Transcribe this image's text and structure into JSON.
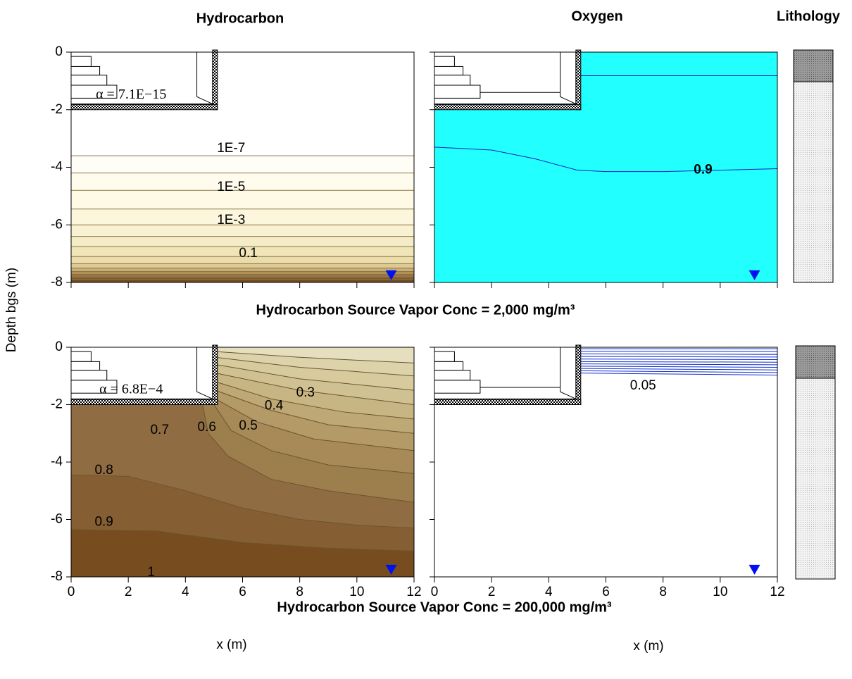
{
  "titles": [
    "Hydrocarbon",
    "Oxygen",
    "Lithology"
  ],
  "ylabel": "Depth bgs (m)",
  "subtitles": [
    "Hydrocarbon Source Vapor Conc = 2,000 mg/m³",
    "Hydrocarbon Source Vapor Conc = 200,000 mg/m³"
  ],
  "xlabels": [
    "x (m)",
    "x (m)"
  ],
  "chart_data": [
    {
      "type": "contour",
      "annotation": "α = 7.1E−15",
      "xlim": [
        0,
        12
      ],
      "ylim": [
        -8,
        0
      ],
      "xticks": [
        0,
        2,
        4,
        6,
        8,
        10,
        12
      ],
      "yticks": [
        0,
        -2,
        -4,
        -6,
        -8
      ],
      "xtick_labels": false,
      "ytick_labels": true,
      "background": "#ffffff",
      "line_color": "#8a7446",
      "contours": [
        {
          "x": [
            0,
            12
          ],
          "y": [
            -3.6,
            -3.6
          ],
          "fill": "#fffef6"
        },
        {
          "x": [
            0,
            12
          ],
          "y": [
            -4.2,
            -4.2
          ],
          "fill": "#fffcee"
        },
        {
          "x": [
            0,
            12
          ],
          "y": [
            -4.8,
            -4.8
          ],
          "fill": "#fffae6"
        },
        {
          "x": [
            0,
            12
          ],
          "y": [
            -5.45,
            -5.45
          ],
          "fill": "#fbf6dc"
        },
        {
          "x": [
            0,
            12
          ],
          "y": [
            -6.0,
            -6.0
          ],
          "fill": "#f8f1d2"
        },
        {
          "x": [
            0,
            12
          ],
          "y": [
            -6.4,
            -6.4
          ],
          "fill": "#f4ecc6"
        },
        {
          "x": [
            0,
            12
          ],
          "y": [
            -6.75,
            -6.75
          ],
          "fill": "#f0e5b8"
        },
        {
          "x": [
            0,
            12
          ],
          "y": [
            -7.1,
            -7.1
          ],
          "fill": "#eadcab"
        },
        {
          "x": [
            0,
            12
          ],
          "y": [
            -7.35,
            -7.35
          ],
          "fill": "#ddc993"
        },
        {
          "x": [
            0,
            12
          ],
          "y": [
            -7.5,
            -7.5
          ],
          "fill": "#c9ae77"
        },
        {
          "x": [
            0,
            12
          ],
          "y": [
            -7.62,
            -7.62
          ],
          "fill": "#b08f58"
        },
        {
          "x": [
            0,
            12
          ],
          "y": [
            -7.72,
            -7.72
          ],
          "fill": "#987440"
        },
        {
          "x": [
            0,
            12
          ],
          "y": [
            -7.82,
            -7.82
          ],
          "fill": "#7f5a2c"
        },
        {
          "x": [
            0,
            12
          ],
          "y": [
            -7.9,
            -7.9
          ],
          "fill": "#6e4a20"
        }
      ],
      "labels": [
        {
          "text": "1E-7",
          "x": 5.6,
          "y": -3.35
        },
        {
          "text": "1E-5",
          "x": 5.6,
          "y": -4.7
        },
        {
          "text": "1E-3",
          "x": 5.6,
          "y": -5.85
        },
        {
          "text": "0.1",
          "x": 6.2,
          "y": -7.0
        }
      ]
    },
    {
      "type": "contour",
      "xlim": [
        0,
        12
      ],
      "ylim": [
        -8,
        0
      ],
      "xticks": [
        0,
        2,
        4,
        6,
        8,
        10,
        12
      ],
      "yticks": [
        0,
        -2,
        -4,
        -6,
        -8
      ],
      "xtick_labels": false,
      "ytick_labels": false,
      "background": "#22ffff",
      "line_color": "#1020c0",
      "contours": [
        {
          "x": [
            5.05,
            12
          ],
          "y": [
            -0.82,
            -0.82
          ]
        },
        {
          "x": [
            0,
            2,
            3.5,
            5,
            6,
            8,
            10,
            12
          ],
          "y": [
            -3.3,
            -3.4,
            -3.7,
            -4.1,
            -4.15,
            -4.15,
            -4.1,
            -4.05
          ]
        }
      ],
      "labels": [
        {
          "text": "0.9",
          "x": 9.4,
          "y": -4.1,
          "bold": true
        }
      ]
    },
    {
      "type": "contour",
      "annotation": "α = 6.8E−4",
      "xlim": [
        0,
        12
      ],
      "ylim": [
        -8,
        0
      ],
      "xticks": [
        0,
        2,
        4,
        6,
        8,
        10,
        12
      ],
      "yticks": [
        0,
        -2,
        -4,
        -6,
        -8
      ],
      "xtick_labels": true,
      "ytick_labels": true,
      "background": "#e6dfbf",
      "line_color": "#6b5530",
      "contours": [
        {
          "x": [
            5.05,
            8,
            12
          ],
          "y": [
            -0.15,
            -0.35,
            -0.55
          ],
          "fill": "#ddd3aa"
        },
        {
          "x": [
            5.05,
            8,
            12
          ],
          "y": [
            -0.35,
            -0.7,
            -1.0
          ],
          "fill": "#d7cb9d"
        },
        {
          "x": [
            5.05,
            8,
            12
          ],
          "y": [
            -0.6,
            -1.1,
            -1.5
          ],
          "fill": "#d0c192"
        },
        {
          "x": [
            5.05,
            8,
            12
          ],
          "y": [
            -0.9,
            -1.5,
            -2.0
          ],
          "fill": "#c8b584"
        },
        {
          "x": [
            5.05,
            7,
            9.5,
            12
          ],
          "y": [
            -1.2,
            -1.8,
            -2.25,
            -2.5
          ],
          "fill": "#bea875"
        },
        {
          "x": [
            5.05,
            7,
            9,
            12
          ],
          "y": [
            -1.5,
            -2.2,
            -2.7,
            -3.0
          ],
          "fill": "#b39a66"
        },
        {
          "x": [
            5.05,
            6.5,
            8.5,
            12
          ],
          "y": [
            -1.8,
            -2.6,
            -3.2,
            -3.6
          ],
          "fill": "#a78a58"
        },
        {
          "x": [
            5.0,
            5.6,
            7,
            9,
            12
          ],
          "y": [
            -2.0,
            -2.9,
            -3.6,
            -4.1,
            -4.4
          ],
          "fill": "#9d7f4d"
        },
        {
          "x": [
            4.6,
            4.8,
            5.5,
            7,
            9,
            12
          ],
          "y": [
            -2.0,
            -3.0,
            -3.8,
            -4.6,
            -5.0,
            -5.4
          ],
          "fill": "#8f6c42"
        },
        {
          "x": [
            0,
            2,
            4,
            6,
            8,
            10,
            12
          ],
          "y": [
            -4.45,
            -4.5,
            -5.0,
            -5.6,
            -6.0,
            -6.2,
            -6.3
          ],
          "fill": "#855f33"
        },
        {
          "x": [
            0,
            3,
            6,
            9,
            12
          ],
          "y": [
            -6.35,
            -6.4,
            -6.8,
            -7.0,
            -7.1
          ],
          "fill": "#774d20"
        }
      ],
      "labels": [
        {
          "text": "0.3",
          "x": 8.2,
          "y": -1.6
        },
        {
          "text": "0.4",
          "x": 7.1,
          "y": -2.05
        },
        {
          "text": "0.5",
          "x": 6.2,
          "y": -2.75
        },
        {
          "text": "0.6",
          "x": 4.75,
          "y": -2.8
        },
        {
          "text": "0.7",
          "x": 3.1,
          "y": -2.9
        },
        {
          "text": "0.8",
          "x": 1.15,
          "y": -4.3
        },
        {
          "text": "0.9",
          "x": 1.15,
          "y": -6.1
        },
        {
          "text": "1",
          "x": 2.8,
          "y": -7.85
        }
      ]
    },
    {
      "type": "contour",
      "xlim": [
        0,
        12
      ],
      "ylim": [
        -8,
        0
      ],
      "xticks": [
        0,
        2,
        4,
        6,
        8,
        10,
        12
      ],
      "yticks": [
        0,
        -2,
        -4,
        -6,
        -8
      ],
      "xtick_labels": true,
      "ytick_labels": false,
      "background": "#ffffff",
      "line_color": "#1030d0",
      "contours": [
        {
          "x": [
            5.05,
            12
          ],
          "y": [
            -0.05,
            -0.05
          ]
        },
        {
          "x": [
            5.05,
            12
          ],
          "y": [
            -0.14,
            -0.15
          ]
        },
        {
          "x": [
            5.05,
            12
          ],
          "y": [
            -0.23,
            -0.25
          ]
        },
        {
          "x": [
            5.05,
            12
          ],
          "y": [
            -0.32,
            -0.34
          ]
        },
        {
          "x": [
            5.05,
            12
          ],
          "y": [
            -0.41,
            -0.43
          ]
        },
        {
          "x": [
            5.05,
            12
          ],
          "y": [
            -0.5,
            -0.52
          ]
        },
        {
          "x": [
            5.05,
            12
          ],
          "y": [
            -0.58,
            -0.61
          ]
        },
        {
          "x": [
            5.05,
            12
          ],
          "y": [
            -0.66,
            -0.7
          ]
        },
        {
          "x": [
            5.05,
            12
          ],
          "y": [
            -0.74,
            -0.79
          ]
        },
        {
          "x": [
            5.05,
            12
          ],
          "y": [
            -0.82,
            -0.88
          ]
        },
        {
          "x": [
            5.05,
            12
          ],
          "y": [
            -0.9,
            -0.97
          ]
        }
      ],
      "labels": [
        {
          "text": "0.05",
          "x": 7.3,
          "y": -1.35
        }
      ]
    }
  ]
}
